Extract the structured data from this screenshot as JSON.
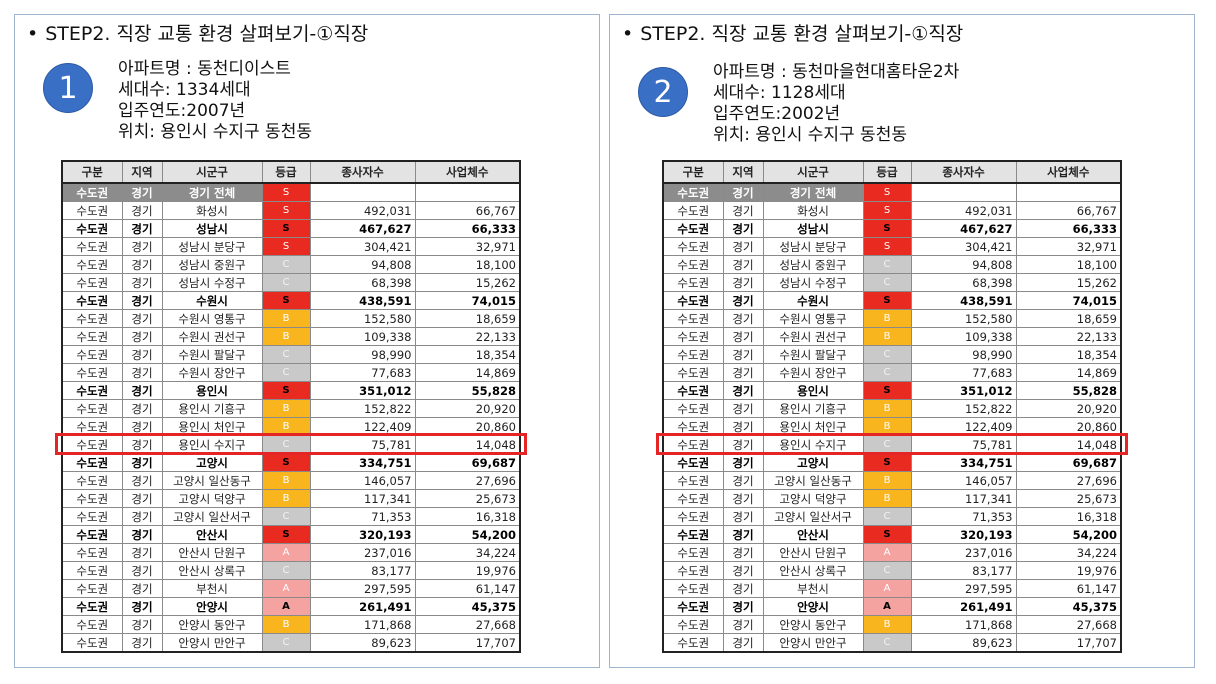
{
  "bullet": "•",
  "panels": [
    {
      "heading": "STEP2. 직장 교통 환경 살펴보기-①직장",
      "number": "1",
      "apartment": "아파트명  : 동천디이스트",
      "households": "세대수: 1334세대",
      "move_in": "입주연도:2007년",
      "location": "위치: 용인시 수지구 동천동"
    },
    {
      "heading": "STEP2. 직장 교통 환경 살펴보기-①직장",
      "number": "2",
      "apartment": "아파트명  : 동천마을현대홈타운2차",
      "households": "세대수: 1128세대",
      "move_in": "입주연도:2002년",
      "location": "위치: 용인시 수지구 동천동"
    }
  ],
  "table": {
    "headers": [
      "구분",
      "지역",
      "시군구",
      "등급",
      "종사자수",
      "사업체수"
    ],
    "rows": [
      {
        "region": "수도권",
        "area": "경기",
        "city": "경기 전체",
        "grade": "S",
        "workers": "",
        "businesses": "",
        "style": "total"
      },
      {
        "region": "수도권",
        "area": "경기",
        "city": "화성시",
        "grade": "S",
        "workers": "492,031",
        "businesses": "66,767",
        "style": ""
      },
      {
        "region": "수도권",
        "area": "경기",
        "city": "성남시",
        "grade": "S",
        "workers": "467,627",
        "businesses": "66,333",
        "style": "bold"
      },
      {
        "region": "수도권",
        "area": "경기",
        "city": "성남시 분당구",
        "grade": "S",
        "workers": "304,421",
        "businesses": "32,971",
        "style": ""
      },
      {
        "region": "수도권",
        "area": "경기",
        "city": "성남시 중원구",
        "grade": "C",
        "workers": "94,808",
        "businesses": "18,100",
        "style": ""
      },
      {
        "region": "수도권",
        "area": "경기",
        "city": "성남시 수정구",
        "grade": "C",
        "workers": "68,398",
        "businesses": "15,262",
        "style": ""
      },
      {
        "region": "수도권",
        "area": "경기",
        "city": "수원시",
        "grade": "S",
        "workers": "438,591",
        "businesses": "74,015",
        "style": "bold"
      },
      {
        "region": "수도권",
        "area": "경기",
        "city": "수원시 영통구",
        "grade": "B",
        "workers": "152,580",
        "businesses": "18,659",
        "style": ""
      },
      {
        "region": "수도권",
        "area": "경기",
        "city": "수원시 권선구",
        "grade": "B",
        "workers": "109,338",
        "businesses": "22,133",
        "style": ""
      },
      {
        "region": "수도권",
        "area": "경기",
        "city": "수원시 팔달구",
        "grade": "C",
        "workers": "98,990",
        "businesses": "18,354",
        "style": ""
      },
      {
        "region": "수도권",
        "area": "경기",
        "city": "수원시 장안구",
        "grade": "C",
        "workers": "77,683",
        "businesses": "14,869",
        "style": ""
      },
      {
        "region": "수도권",
        "area": "경기",
        "city": "용인시",
        "grade": "S",
        "workers": "351,012",
        "businesses": "55,828",
        "style": "bold"
      },
      {
        "region": "수도권",
        "area": "경기",
        "city": "용인시 기흥구",
        "grade": "B",
        "workers": "152,822",
        "businesses": "20,920",
        "style": ""
      },
      {
        "region": "수도권",
        "area": "경기",
        "city": "용인시 처인구",
        "grade": "B",
        "workers": "122,409",
        "businesses": "20,860",
        "style": ""
      },
      {
        "region": "수도권",
        "area": "경기",
        "city": "용인시 수지구",
        "grade": "C",
        "workers": "75,781",
        "businesses": "14,048",
        "style": ""
      },
      {
        "region": "수도권",
        "area": "경기",
        "city": "고양시",
        "grade": "S",
        "workers": "334,751",
        "businesses": "69,687",
        "style": "bold"
      },
      {
        "region": "수도권",
        "area": "경기",
        "city": "고양시 일산동구",
        "grade": "B",
        "workers": "146,057",
        "businesses": "27,696",
        "style": ""
      },
      {
        "region": "수도권",
        "area": "경기",
        "city": "고양시 덕양구",
        "grade": "B",
        "workers": "117,341",
        "businesses": "25,673",
        "style": ""
      },
      {
        "region": "수도권",
        "area": "경기",
        "city": "고양시 일산서구",
        "grade": "C",
        "workers": "71,353",
        "businesses": "16,318",
        "style": ""
      },
      {
        "region": "수도권",
        "area": "경기",
        "city": "안산시",
        "grade": "S",
        "workers": "320,193",
        "businesses": "54,200",
        "style": "bold"
      },
      {
        "region": "수도권",
        "area": "경기",
        "city": "안산시 단원구",
        "grade": "A",
        "workers": "237,016",
        "businesses": "34,224",
        "style": ""
      },
      {
        "region": "수도권",
        "area": "경기",
        "city": "안산시 상록구",
        "grade": "C",
        "workers": "83,177",
        "businesses": "19,976",
        "style": ""
      },
      {
        "region": "수도권",
        "area": "경기",
        "city": "부천시",
        "grade": "A",
        "workers": "297,595",
        "businesses": "61,147",
        "style": ""
      },
      {
        "region": "수도권",
        "area": "경기",
        "city": "안양시",
        "grade": "A",
        "workers": "261,491",
        "businesses": "45,375",
        "style": "bold"
      },
      {
        "region": "수도권",
        "area": "경기",
        "city": "안양시 동안구",
        "grade": "B",
        "workers": "171,868",
        "businesses": "27,668",
        "style": ""
      },
      {
        "region": "수도권",
        "area": "경기",
        "city": "안양시 만안구",
        "grade": "C",
        "workers": "89,623",
        "businesses": "17,707",
        "style": ""
      }
    ],
    "highlight_row_index": 14
  },
  "colors": {
    "grade_S": "#e82a20",
    "grade_A": "#f5a3a0",
    "grade_B": "#f9b51d",
    "grade_C": "#c9c9c9",
    "highlight": "#e52525",
    "badge": "#3a6fc6"
  }
}
